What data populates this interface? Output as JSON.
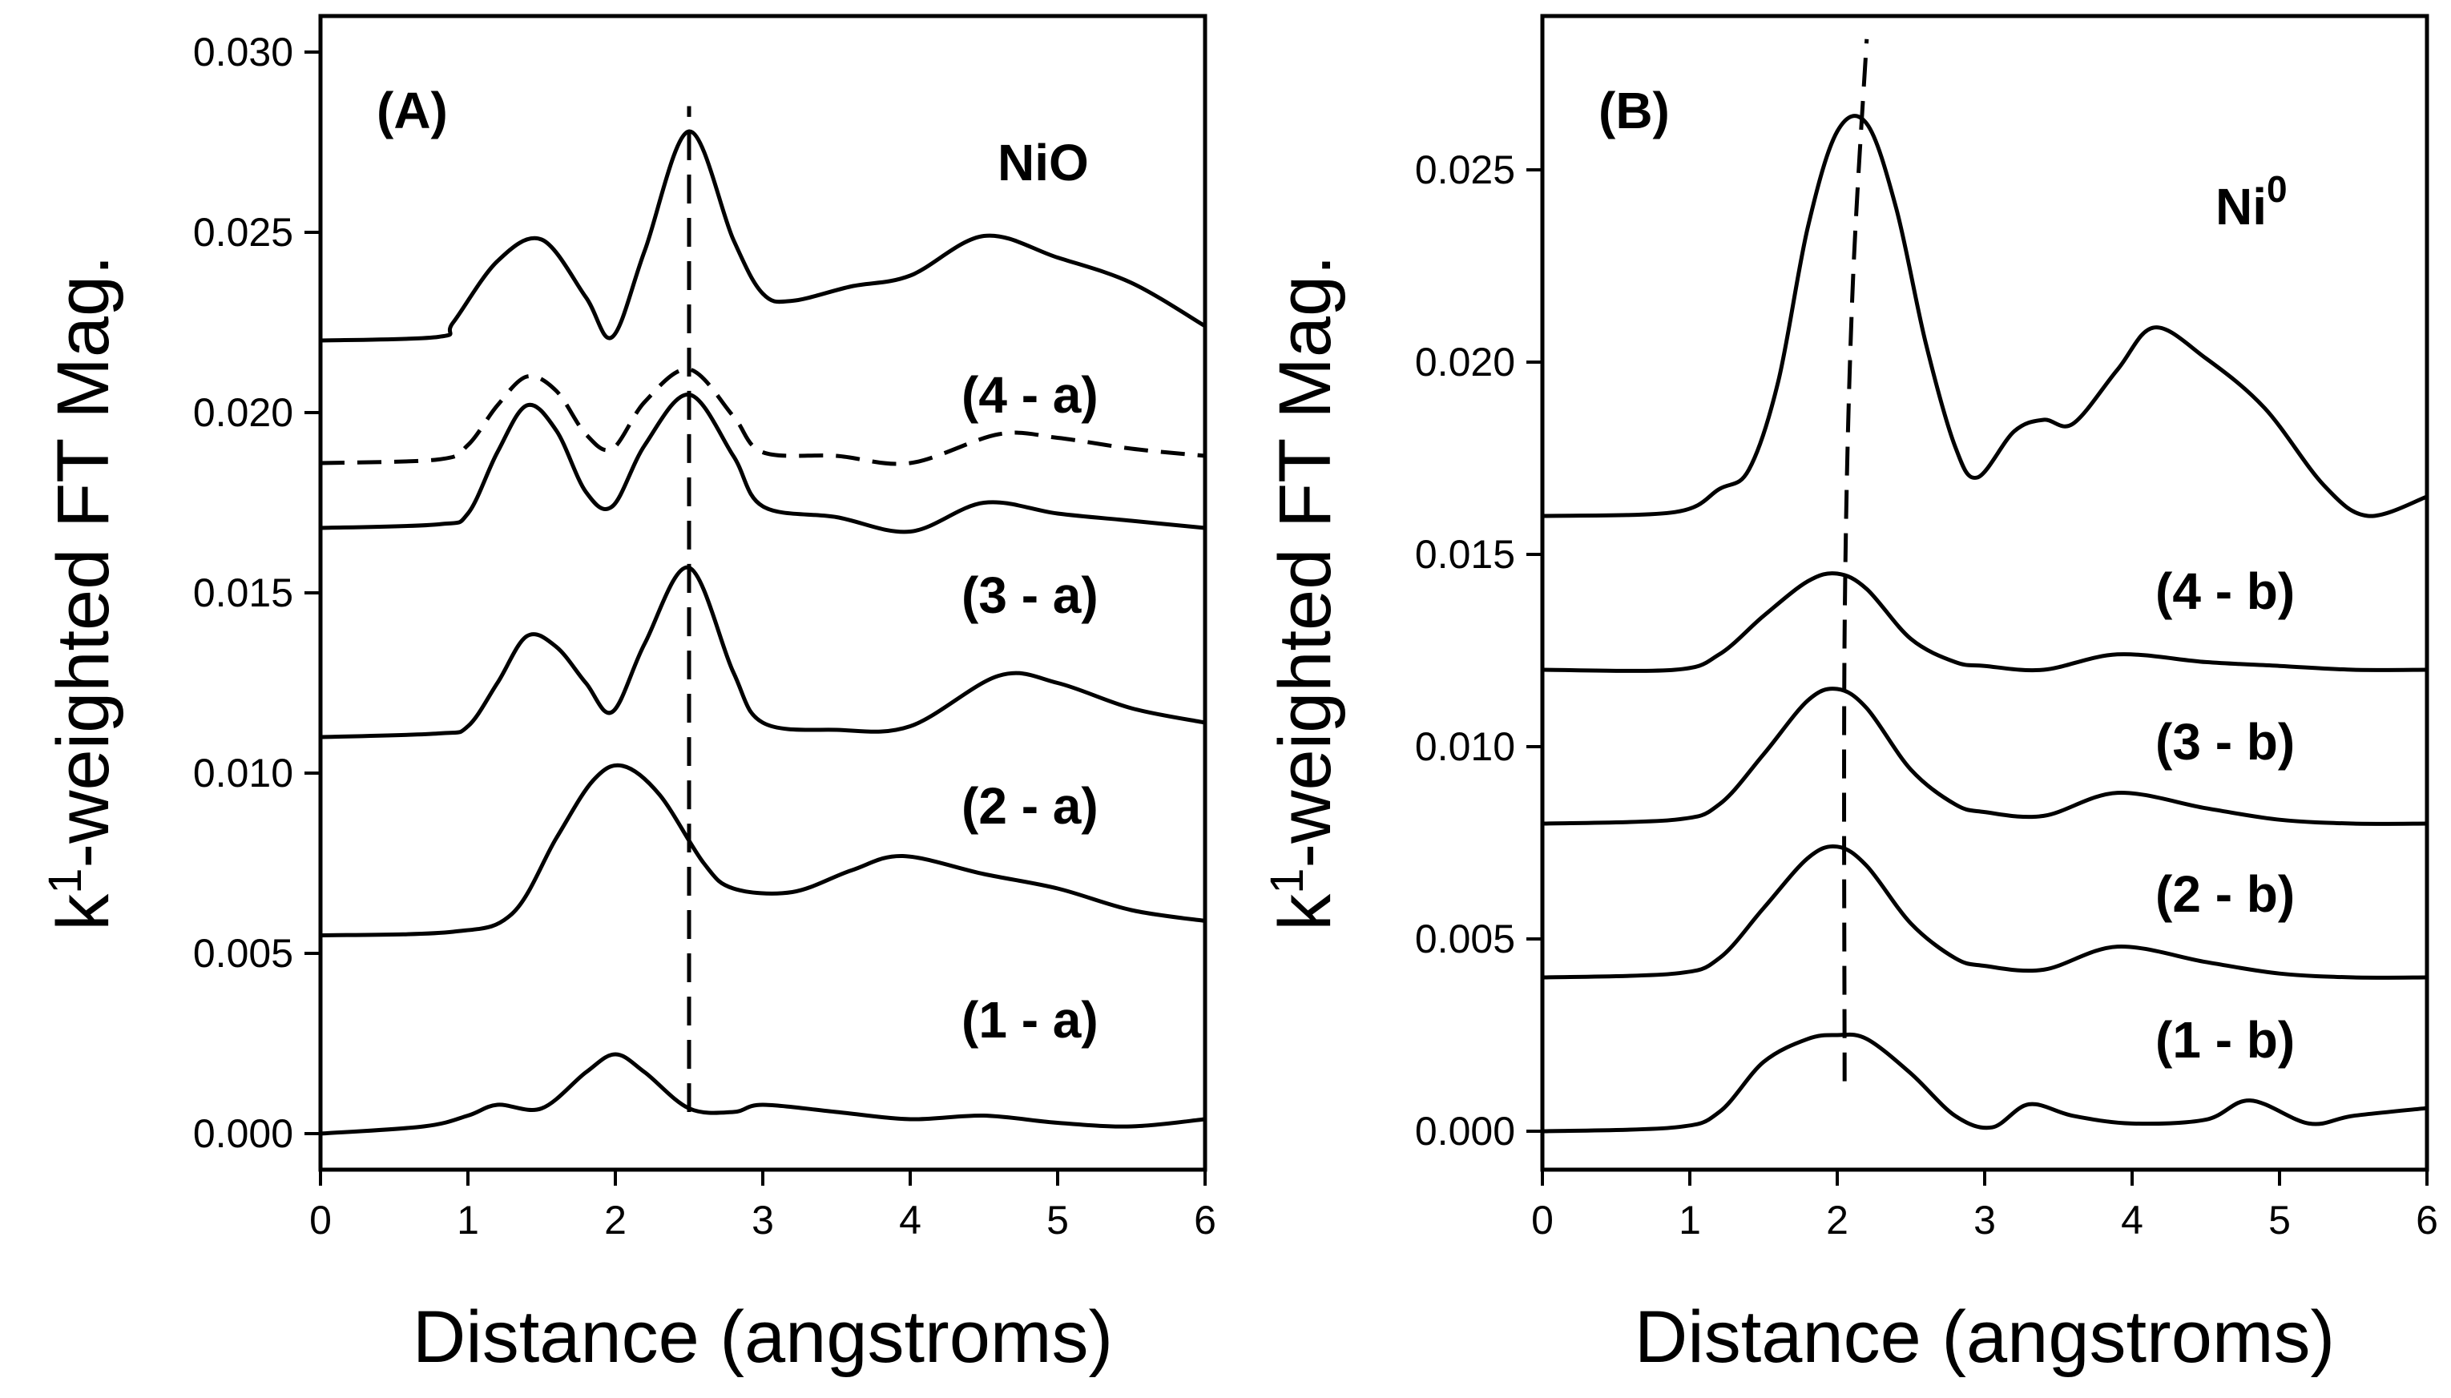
{
  "chart_data": [
    {
      "type": "line",
      "panel_label": "(A)",
      "reference_label": "NiO",
      "xlabel": "Distance (angstroms)",
      "ylabel": "k1-weighted FT Mag.",
      "ylabel_parts": {
        "base": "k",
        "superscript": "1",
        "rest": "-weighted FT Mag."
      },
      "xlim": [
        0,
        6
      ],
      "ylim": [
        -0.001,
        0.031
      ],
      "x_ticks": [
        "0",
        "1",
        "2",
        "3",
        "4",
        "5",
        "6"
      ],
      "y_ticks": [
        "0.000",
        "0.005",
        "0.010",
        "0.015",
        "0.020",
        "0.025",
        "0.030"
      ],
      "guide_line": {
        "style": "dashed",
        "points": [
          [
            2.5,
            0.0006
          ],
          [
            2.5,
            0.0285
          ]
        ]
      },
      "series": [
        {
          "name": "(1 - a)",
          "style": "solid",
          "x": [
            0,
            0.7,
            1.0,
            1.2,
            1.5,
            1.8,
            2.0,
            2.2,
            2.5,
            2.8,
            3.0,
            3.5,
            4.0,
            4.5,
            5.0,
            5.5,
            6.0
          ],
          "y": [
            0.0,
            0.0002,
            0.0005,
            0.0008,
            0.0007,
            0.0017,
            0.0022,
            0.0017,
            0.0007,
            0.0006,
            0.0008,
            0.0006,
            0.0004,
            0.0005,
            0.0003,
            0.0002,
            0.0004
          ]
        },
        {
          "name": "(2 - a)",
          "style": "solid",
          "x": [
            0,
            0.9,
            1.3,
            1.6,
            1.85,
            2.05,
            2.3,
            2.6,
            2.8,
            3.2,
            3.6,
            3.95,
            4.5,
            5.0,
            5.5,
            6.0
          ],
          "y": [
            0.0055,
            0.0056,
            0.0061,
            0.0082,
            0.0098,
            0.0102,
            0.0094,
            0.0075,
            0.0068,
            0.0067,
            0.0073,
            0.0077,
            0.0072,
            0.0068,
            0.0062,
            0.0059
          ]
        },
        {
          "name": "(3 - a)",
          "style": "solid",
          "x": [
            0,
            0.8,
            1.0,
            1.2,
            1.4,
            1.6,
            1.8,
            1.98,
            2.2,
            2.5,
            2.8,
            3.0,
            3.5,
            4.0,
            4.6,
            5.0,
            5.5,
            6.0
          ],
          "y": [
            0.011,
            0.0111,
            0.0113,
            0.0125,
            0.0138,
            0.0135,
            0.0125,
            0.0117,
            0.0136,
            0.0157,
            0.0128,
            0.0114,
            0.0112,
            0.0113,
            0.0127,
            0.0125,
            0.0118,
            0.0114
          ]
        },
        {
          "name": "(4 - a)",
          "style": "solid",
          "x": [
            0,
            0.8,
            1.0,
            1.2,
            1.4,
            1.6,
            1.8,
            1.98,
            2.2,
            2.5,
            2.8,
            3.0,
            3.5,
            4.0,
            4.5,
            5.0,
            5.5,
            6.0
          ],
          "y": [
            0.0168,
            0.0169,
            0.0172,
            0.0189,
            0.0202,
            0.0195,
            0.0178,
            0.0174,
            0.0191,
            0.0205,
            0.0188,
            0.0174,
            0.0171,
            0.0167,
            0.0175,
            0.0172,
            0.017,
            0.0168
          ]
        },
        {
          "name": "(4 - a) dashed",
          "style": "dashed",
          "x": [
            0,
            0.8,
            1.0,
            1.2,
            1.4,
            1.6,
            1.8,
            1.98,
            2.2,
            2.5,
            2.8,
            3.0,
            3.5,
            4.0,
            4.6,
            5.0,
            5.5,
            6.0
          ],
          "y": [
            0.0186,
            0.0187,
            0.0191,
            0.0202,
            0.021,
            0.0206,
            0.0194,
            0.019,
            0.0203,
            0.0212,
            0.0199,
            0.0189,
            0.0188,
            0.0186,
            0.0194,
            0.0193,
            0.019,
            0.0188
          ]
        },
        {
          "name": "NiO",
          "style": "solid",
          "x": [
            0,
            0.8,
            0.9,
            1.2,
            1.5,
            1.8,
            1.98,
            2.2,
            2.5,
            2.8,
            3.0,
            3.2,
            3.6,
            4.0,
            4.5,
            5.0,
            5.5,
            6.0
          ],
          "y": [
            0.022,
            0.0221,
            0.0225,
            0.0242,
            0.0248,
            0.0232,
            0.0221,
            0.0245,
            0.0278,
            0.0248,
            0.0233,
            0.0231,
            0.0235,
            0.0238,
            0.0249,
            0.0243,
            0.0236,
            0.0224
          ]
        }
      ]
    },
    {
      "type": "line",
      "panel_label": "(B)",
      "reference_label": "Ni",
      "reference_superscript": "0",
      "xlabel": "Distance (angstroms)",
      "ylabel": "k1-weighted FT Mag.",
      "ylabel_parts": {
        "base": "k",
        "superscript": "1",
        "rest": "-weighted FT Mag."
      },
      "xlim": [
        0,
        6
      ],
      "ylim": [
        -0.001,
        0.029
      ],
      "x_ticks": [
        "0",
        "1",
        "2",
        "3",
        "4",
        "5",
        "6"
      ],
      "y_ticks": [
        "0.000",
        "0.005",
        "0.010",
        "0.015",
        "0.020",
        "0.025"
      ],
      "guide_line": {
        "style": "dashed",
        "points": [
          [
            2.05,
            0.0013
          ],
          [
            2.05,
            0.013
          ],
          [
            2.1,
            0.0215
          ],
          [
            2.2,
            0.0284
          ]
        ]
      },
      "series": [
        {
          "name": "(1 - b)",
          "style": "solid",
          "x": [
            0,
            0.9,
            1.2,
            1.5,
            1.8,
            2.0,
            2.2,
            2.5,
            2.8,
            3.05,
            3.3,
            3.6,
            4.0,
            4.5,
            4.8,
            5.2,
            5.5,
            6.0
          ],
          "y": [
            0.0,
            0.0001,
            0.0005,
            0.0018,
            0.0024,
            0.0025,
            0.0024,
            0.0015,
            0.0004,
            0.0001,
            0.0007,
            0.0004,
            0.0002,
            0.0003,
            0.0008,
            0.0002,
            0.0004,
            0.0006
          ]
        },
        {
          "name": "(2 - b)",
          "style": "solid",
          "x": [
            0,
            0.9,
            1.2,
            1.5,
            1.8,
            2.0,
            2.2,
            2.5,
            2.8,
            3.0,
            3.4,
            3.9,
            4.5,
            5.0,
            5.5,
            6.0
          ],
          "y": [
            0.004,
            0.0041,
            0.0045,
            0.0058,
            0.0071,
            0.0074,
            0.0069,
            0.0054,
            0.0045,
            0.0043,
            0.0042,
            0.0048,
            0.0044,
            0.0041,
            0.004,
            0.004
          ]
        },
        {
          "name": "(3 - b)",
          "style": "solid",
          "x": [
            0,
            0.9,
            1.2,
            1.5,
            1.8,
            2.0,
            2.2,
            2.5,
            2.8,
            3.0,
            3.4,
            3.9,
            4.5,
            5.0,
            5.5,
            6.0
          ],
          "y": [
            0.008,
            0.0081,
            0.0085,
            0.0098,
            0.0112,
            0.0115,
            0.011,
            0.0094,
            0.0085,
            0.0083,
            0.0082,
            0.0088,
            0.0084,
            0.0081,
            0.008,
            0.008
          ]
        },
        {
          "name": "(4 - b)",
          "style": "solid",
          "x": [
            0,
            0.9,
            1.2,
            1.5,
            1.8,
            2.0,
            2.2,
            2.5,
            2.8,
            3.0,
            3.4,
            3.9,
            4.5,
            5.0,
            5.5,
            6.0
          ],
          "y": [
            0.012,
            0.012,
            0.0124,
            0.0134,
            0.0143,
            0.0145,
            0.0141,
            0.0128,
            0.0122,
            0.0121,
            0.012,
            0.0124,
            0.0122,
            0.0121,
            0.012,
            0.012
          ]
        },
        {
          "name": "Ni0",
          "style": "solid",
          "x": [
            0,
            0.9,
            1.2,
            1.4,
            1.6,
            1.8,
            2.0,
            2.2,
            2.4,
            2.6,
            2.8,
            2.95,
            3.2,
            3.4,
            3.6,
            3.9,
            4.15,
            4.5,
            4.9,
            5.3,
            5.6,
            6.0
          ],
          "y": [
            0.016,
            0.0161,
            0.0167,
            0.0172,
            0.0195,
            0.0235,
            0.026,
            0.0262,
            0.024,
            0.0205,
            0.0178,
            0.017,
            0.0182,
            0.0185,
            0.0184,
            0.0198,
            0.0209,
            0.0201,
            0.0188,
            0.0168,
            0.016,
            0.0165
          ]
        }
      ]
    }
  ]
}
